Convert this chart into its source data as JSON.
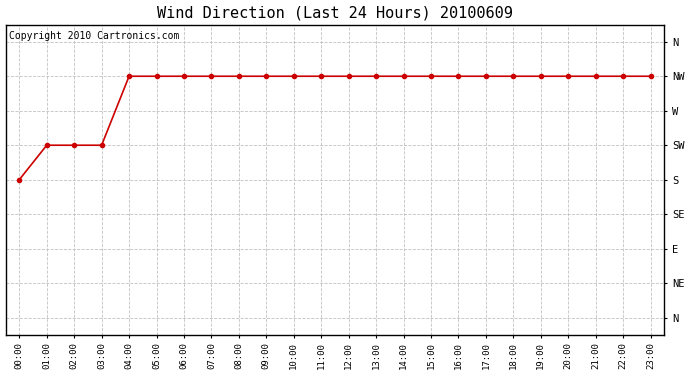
{
  "title": "Wind Direction (Last 24 Hours) 20100609",
  "copyright_text": "Copyright 2010 Cartronics.com",
  "x_labels": [
    "00:00",
    "01:00",
    "02:00",
    "03:00",
    "04:00",
    "05:00",
    "06:00",
    "07:00",
    "08:00",
    "09:00",
    "10:00",
    "11:00",
    "12:00",
    "13:00",
    "14:00",
    "15:00",
    "16:00",
    "17:00",
    "18:00",
    "19:00",
    "20:00",
    "21:00",
    "22:00",
    "23:00"
  ],
  "x_values": [
    0,
    1,
    2,
    3,
    4,
    5,
    6,
    7,
    8,
    9,
    10,
    11,
    12,
    13,
    14,
    15,
    16,
    17,
    18,
    19,
    20,
    21,
    22,
    23
  ],
  "y_values": [
    4,
    5,
    5,
    5,
    7,
    7,
    7,
    7,
    7,
    7,
    7,
    7,
    7,
    7,
    7,
    7,
    7,
    7,
    7,
    7,
    7,
    7,
    7,
    7
  ],
  "y_ticks": [
    8,
    7,
    6,
    5,
    4,
    3,
    2,
    1,
    0
  ],
  "y_labels": [
    "N",
    "NW",
    "W",
    "SW",
    "S",
    "SE",
    "E",
    "NE",
    "N"
  ],
  "line_color": "#cc0000",
  "marker": "o",
  "marker_size": 3,
  "grid_color": "#bbbbbb",
  "background_color": "#ffffff",
  "title_fontsize": 11,
  "copyright_fontsize": 7,
  "fig_width": 6.9,
  "fig_height": 3.75
}
